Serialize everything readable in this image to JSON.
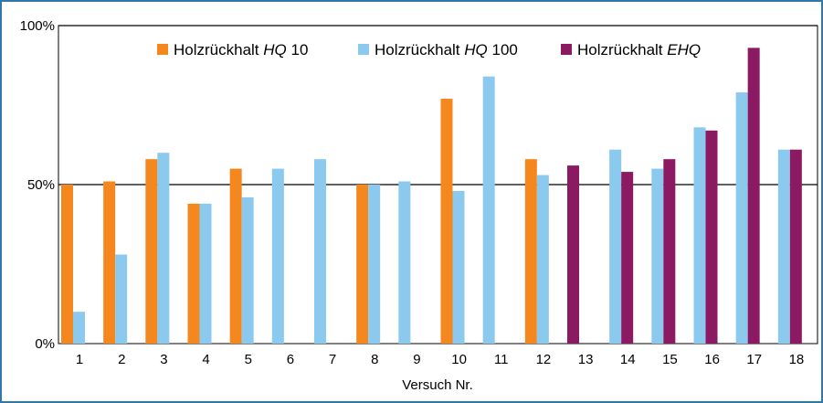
{
  "chart_data": {
    "type": "bar",
    "xlabel": "Versuch Nr.",
    "ylabel": "",
    "ylim": [
      0,
      100
    ],
    "yticks": [
      {
        "value": 0,
        "label": "0%"
      },
      {
        "value": 50,
        "label": "50%"
      },
      {
        "value": 100,
        "label": "100%"
      }
    ],
    "categories": [
      "1",
      "2",
      "3",
      "4",
      "5",
      "6",
      "7",
      "8",
      "9",
      "10",
      "11",
      "12",
      "13",
      "14",
      "15",
      "16",
      "17",
      "18"
    ],
    "series": [
      {
        "legend_prefix": "Holzrückhalt ",
        "legend_italic": "HQ",
        "legend_suffix": " 10",
        "color": "#f5871f",
        "values": [
          50,
          51,
          58,
          44,
          55,
          null,
          null,
          50,
          null,
          77,
          null,
          58,
          null,
          null,
          null,
          null,
          null,
          null
        ]
      },
      {
        "legend_prefix": "Holzrückhalt ",
        "legend_italic": "HQ",
        "legend_suffix": " 100",
        "color": "#8cc9ef",
        "values": [
          10,
          28,
          60,
          44,
          46,
          55,
          58,
          50,
          51,
          48,
          84,
          53,
          null,
          61,
          55,
          68,
          79,
          61
        ]
      },
      {
        "legend_prefix": "Holzrückhalt ",
        "legend_italic": "EHQ",
        "legend_suffix": "",
        "color": "#8b1a63",
        "values": [
          null,
          null,
          null,
          null,
          null,
          null,
          null,
          null,
          null,
          null,
          null,
          null,
          56,
          54,
          58,
          67,
          93,
          61
        ]
      }
    ],
    "reference_lines": [
      50,
      100
    ],
    "legend_position": "top"
  }
}
